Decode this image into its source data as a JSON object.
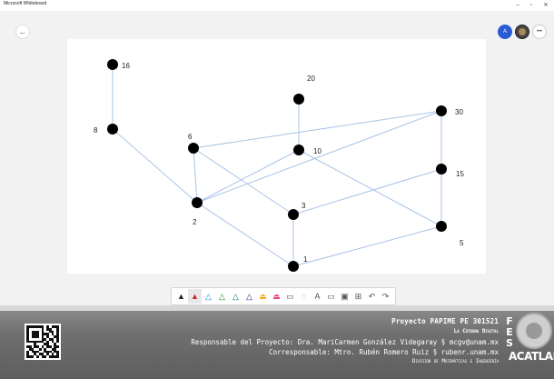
{
  "window": {
    "title": "Microsoft Whiteboard",
    "minimize": "–",
    "maximize": "▫",
    "close": "✕"
  },
  "header": {
    "back_icon": "←",
    "avatar_initial": "A",
    "more_icon": "•••"
  },
  "graph": {
    "nodes": [
      {
        "id": "16",
        "label": "16"
      },
      {
        "id": "8",
        "label": "8"
      },
      {
        "id": "6",
        "label": "6"
      },
      {
        "id": "2",
        "label": "2"
      },
      {
        "id": "20",
        "label": "20"
      },
      {
        "id": "10",
        "label": "10"
      },
      {
        "id": "3",
        "label": "3"
      },
      {
        "id": "1",
        "label": "1"
      },
      {
        "id": "30",
        "label": "30"
      },
      {
        "id": "15",
        "label": "15"
      },
      {
        "id": "5",
        "label": "5"
      }
    ],
    "edges": [
      [
        "16",
        "8"
      ],
      [
        "8",
        "2"
      ],
      [
        "6",
        "2"
      ],
      [
        "6",
        "3"
      ],
      [
        "6",
        "30"
      ],
      [
        "2",
        "10"
      ],
      [
        "2",
        "30"
      ],
      [
        "2",
        "1"
      ],
      [
        "20",
        "10"
      ],
      [
        "10",
        "5"
      ],
      [
        "3",
        "15"
      ],
      [
        "3",
        "1"
      ],
      [
        "1",
        "5"
      ],
      [
        "30",
        "15"
      ],
      [
        "15",
        "5"
      ]
    ],
    "node_color": "#000000",
    "edge_color": "#a9c3e6"
  },
  "toolbar": {
    "tools": [
      {
        "name": "pen-black-tool",
        "glyph": "▲",
        "color": "#222222",
        "active": false
      },
      {
        "name": "pen-red-tool",
        "glyph": "▲",
        "color": "#c62828",
        "active": true
      },
      {
        "name": "pen-blue-tool",
        "glyph": "△",
        "color": "#1e88e5",
        "active": false
      },
      {
        "name": "pen-green-tool",
        "glyph": "△",
        "color": "#2e7d32",
        "active": false
      },
      {
        "name": "pen-teal-tool",
        "glyph": "△",
        "color": "#00796b",
        "active": false
      },
      {
        "name": "pen-navy-tool",
        "glyph": "△",
        "color": "#1a237e",
        "active": false
      },
      {
        "name": "highlighter-yellow-tool",
        "glyph": "⏏",
        "color": "#f9a825",
        "active": false
      },
      {
        "name": "highlighter-pink-tool",
        "glyph": "⏏",
        "color": "#ec407a",
        "active": false
      },
      {
        "name": "eraser-tool",
        "glyph": "▭",
        "color": "#555555",
        "active": false
      },
      {
        "name": "lasso-tool",
        "glyph": "◌",
        "color": "#555555",
        "active": false
      },
      {
        "name": "text-tool",
        "glyph": "A",
        "color": "#555555",
        "active": false
      },
      {
        "name": "note-tool",
        "glyph": "▭",
        "color": "#555555",
        "active": false
      },
      {
        "name": "image-tool",
        "glyph": "▣",
        "color": "#555555",
        "active": false
      },
      {
        "name": "insert-tool",
        "glyph": "⊞",
        "color": "#555555",
        "active": false
      },
      {
        "name": "undo-tool",
        "glyph": "↶",
        "color": "#555555",
        "active": false
      },
      {
        "name": "redo-tool",
        "glyph": "↷",
        "color": "#555555",
        "active": false
      }
    ]
  },
  "footer": {
    "line1": "Proyecto PAPIME PE 301521",
    "line2": "La Cátedra Digital",
    "line3": "Responsable del Proyecto: Dra. MariCarmen González Videgaray § mcgv@unam.mx",
    "line4": "Corresponsable: Mtro. Rubén Romero Ruiz § rubenr.unam.mx",
    "line5": "División de Matemáticas e Ingeniería",
    "fes": "F E S",
    "acatlan": "ACATLAN"
  }
}
